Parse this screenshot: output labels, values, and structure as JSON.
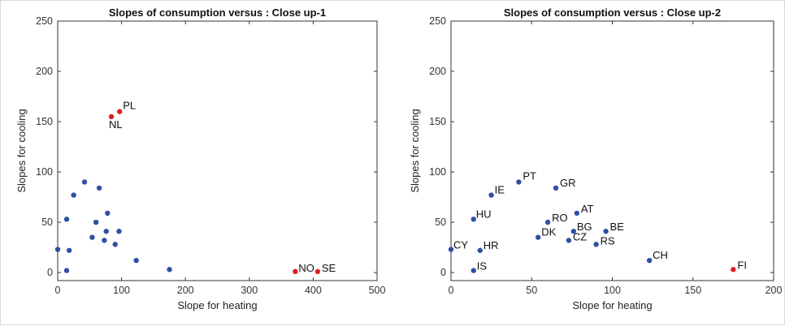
{
  "chart_data": [
    {
      "type": "scatter",
      "title": "Slopes of consumption versus : Close  up-1",
      "xlabel": "Slope for heating",
      "ylabel": "Slopes for cooling",
      "xlim": [
        0,
        500
      ],
      "ylim": [
        -8,
        250
      ],
      "xticks": [
        "0",
        "100",
        "200",
        "300",
        "400",
        "500"
      ],
      "yticks": [
        "0",
        "50",
        "100",
        "150",
        "200",
        "250"
      ],
      "grid": false,
      "points": [
        {
          "x": 0,
          "y": 23,
          "label": "",
          "color": "#2e4fa3"
        },
        {
          "x": 14,
          "y": 2,
          "label": "",
          "color": "#2e4fa3"
        },
        {
          "x": 14,
          "y": 53,
          "label": "",
          "color": "#2e4fa3"
        },
        {
          "x": 18,
          "y": 22,
          "label": "",
          "color": "#2e4fa3"
        },
        {
          "x": 25,
          "y": 77,
          "label": "",
          "color": "#2e4fa3"
        },
        {
          "x": 42,
          "y": 90,
          "label": "",
          "color": "#2e4fa3"
        },
        {
          "x": 54,
          "y": 35,
          "label": "",
          "color": "#2e4fa3"
        },
        {
          "x": 60,
          "y": 50,
          "label": "",
          "color": "#2e4fa3"
        },
        {
          "x": 65,
          "y": 84,
          "label": "",
          "color": "#2e4fa3"
        },
        {
          "x": 73,
          "y": 32,
          "label": "",
          "color": "#2e4fa3"
        },
        {
          "x": 76,
          "y": 41,
          "label": "",
          "color": "#2e4fa3"
        },
        {
          "x": 78,
          "y": 59,
          "label": "",
          "color": "#2e4fa3"
        },
        {
          "x": 90,
          "y": 28,
          "label": "",
          "color": "#2e4fa3"
        },
        {
          "x": 96,
          "y": 41,
          "label": "",
          "color": "#2e4fa3"
        },
        {
          "x": 123,
          "y": 12,
          "label": "",
          "color": "#2e4fa3"
        },
        {
          "x": 175,
          "y": 3,
          "label": "",
          "color": "#2e4fa3"
        },
        {
          "x": 84,
          "y": 155,
          "label": "NL",
          "color": "#e02020"
        },
        {
          "x": 97,
          "y": 160,
          "label": "PL",
          "color": "#e02020"
        },
        {
          "x": 372,
          "y": 1,
          "label": "NO",
          "color": "#e02020"
        },
        {
          "x": 407,
          "y": 1,
          "label": "SE",
          "color": "#e02020"
        }
      ]
    },
    {
      "type": "scatter",
      "title": "Slopes of consumption versus : Close  up-2",
      "xlabel": "Slope for heating",
      "ylabel": "Slopes for cooling",
      "xlim": [
        0,
        200
      ],
      "ylim": [
        -8,
        250
      ],
      "xticks": [
        "0",
        "50",
        "100",
        "150",
        "200"
      ],
      "yticks": [
        "0",
        "50",
        "100",
        "150",
        "200",
        "250"
      ],
      "grid": false,
      "points": [
        {
          "x": 0,
          "y": 23,
          "label": "CY",
          "color": "#2e4fa3"
        },
        {
          "x": 14,
          "y": 2,
          "label": "IS",
          "color": "#2e4fa3"
        },
        {
          "x": 14,
          "y": 53,
          "label": "HU",
          "color": "#2e4fa3"
        },
        {
          "x": 18,
          "y": 22,
          "label": "HR",
          "color": "#2e4fa3"
        },
        {
          "x": 25,
          "y": 77,
          "label": "IE",
          "color": "#2e4fa3"
        },
        {
          "x": 42,
          "y": 90,
          "label": "PT",
          "color": "#2e4fa3"
        },
        {
          "x": 54,
          "y": 35,
          "label": "DK",
          "color": "#2e4fa3"
        },
        {
          "x": 60,
          "y": 50,
          "label": "RO",
          "color": "#2e4fa3"
        },
        {
          "x": 65,
          "y": 84,
          "label": "GR",
          "color": "#2e4fa3"
        },
        {
          "x": 73,
          "y": 32,
          "label": "CZ",
          "color": "#2e4fa3"
        },
        {
          "x": 76,
          "y": 41,
          "label": "BG",
          "color": "#2e4fa3"
        },
        {
          "x": 78,
          "y": 59,
          "label": "AT",
          "color": "#2e4fa3"
        },
        {
          "x": 90,
          "y": 28,
          "label": "RS",
          "color": "#2e4fa3"
        },
        {
          "x": 96,
          "y": 41,
          "label": "BE",
          "color": "#2e4fa3"
        },
        {
          "x": 123,
          "y": 12,
          "label": "CH",
          "color": "#2e4fa3"
        },
        {
          "x": 175,
          "y": 3,
          "label": "FI",
          "color": "#e02020"
        }
      ]
    }
  ]
}
